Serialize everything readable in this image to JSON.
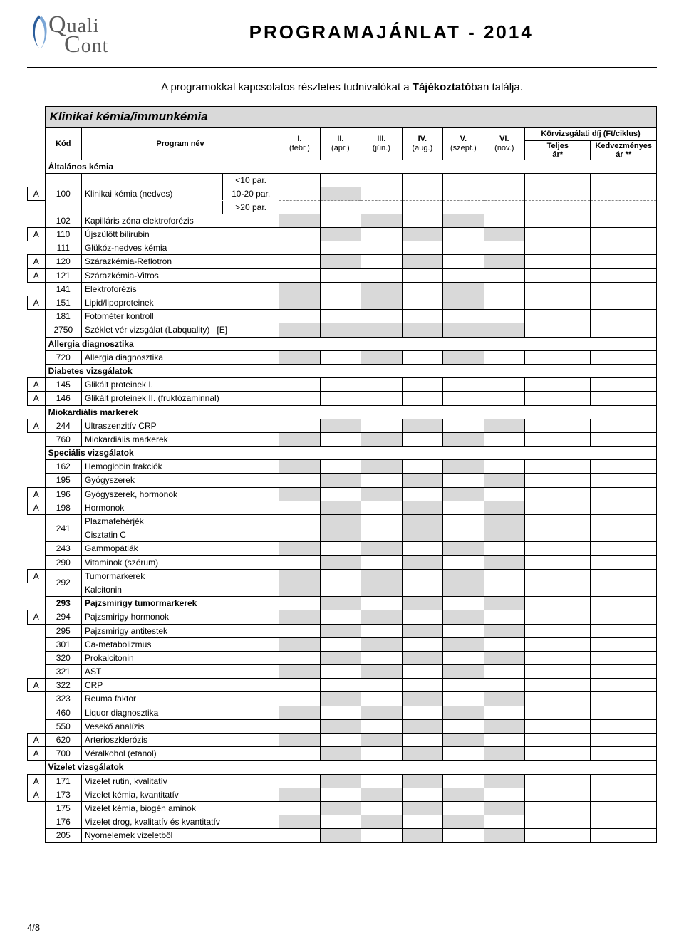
{
  "header": {
    "logo_line1_cap": "Q",
    "logo_line1_rest": "uali",
    "logo_line2_cap": "C",
    "logo_line2_rest": "ont",
    "title": "PROGRAMAJÁNLAT - 2014"
  },
  "intro_prefix": "A programokkal kapcsolatos részletes tudnivalókat a ",
  "intro_bold": "Tájékoztató",
  "intro_suffix": "ban találja.",
  "section_title": "Klinikai kémia/immunkémia",
  "columns": {
    "kod": "Kód",
    "program_nev": "Program név",
    "c1_top": "I.",
    "c1_bot": "(febr.)",
    "c2_top": "II.",
    "c2_bot": "(ápr.)",
    "c3_top": "III.",
    "c3_bot": "(jún.)",
    "c4_top": "IV.",
    "c4_bot": "(aug.)",
    "c5_top": "V.",
    "c5_bot": "(szept.)",
    "c6_top": "VI.",
    "c6_bot": "(nov.)",
    "price_header": "Körvizsgálati díj (Ft/ciklus)",
    "price_full": "Teljes ár*",
    "price_disc": "Kedvezményes ár **"
  },
  "groups": [
    {
      "title": "Általános kémia",
      "rows": [
        {
          "a": "A",
          "code": "100",
          "name": "Klinikai kémia (nedves)",
          "variants": [
            "<10 par.",
            "10-20 par.",
            ">20 par."
          ],
          "grey_cycles": [
            2
          ]
        },
        {
          "a": "",
          "code": "102",
          "name": "Kapilláris zóna elektroforézis",
          "grey_cycles": [
            1,
            3,
            5
          ]
        },
        {
          "a": "A",
          "code": "110",
          "name": "Újszülött bilirubin",
          "grey_cycles": [
            2,
            4,
            6
          ]
        },
        {
          "a": "",
          "code": "111",
          "name": "Glükóz-nedves kémia",
          "grey_cycles": []
        },
        {
          "a": "A",
          "code": "120",
          "name": "Szárazkémia-Reflotron",
          "grey_cycles": [
            2,
            4,
            6
          ]
        },
        {
          "a": "A",
          "code": "121",
          "name": "Szárazkémia-Vitros",
          "grey_cycles": []
        },
        {
          "a": "",
          "code": "141",
          "name": "Elektroforézis",
          "grey_cycles": [
            1,
            3,
            5
          ]
        },
        {
          "a": "A",
          "code": "151",
          "name": "Lipid/lipoproteinek",
          "grey_cycles": [
            1,
            3,
            5
          ]
        },
        {
          "a": "",
          "code": "181",
          "name": "Fotométer kontroll",
          "grey_cycles": []
        },
        {
          "a": "",
          "code": "2750",
          "name": "Széklet vér vizsgálat (Labquality)",
          "extra": "[E]",
          "grey_cycles": [
            1,
            2,
            3,
            4,
            5,
            6
          ]
        }
      ]
    },
    {
      "title": "Allergia diagnosztika",
      "rows": [
        {
          "a": "",
          "code": "720",
          "name": "Allergia diagnosztika",
          "grey_cycles": [
            1,
            3,
            5
          ]
        }
      ]
    },
    {
      "title": "Diabetes vizsgálatok",
      "rows": [
        {
          "a": "A",
          "code": "145",
          "name": "Glikált proteinek I.",
          "grey_cycles": []
        },
        {
          "a": "A",
          "code": "146",
          "name": "Glikált proteinek II. (fruktózaminnal)",
          "grey_cycles": []
        }
      ]
    },
    {
      "title": "Miokardiális markerek",
      "rows": [
        {
          "a": "A",
          "code": "244",
          "name": "Ultraszenzitív CRP",
          "grey_cycles": [
            2,
            4,
            6
          ]
        },
        {
          "a": "",
          "code": "760",
          "name": "Miokardiális markerek",
          "grey_cycles": [
            1,
            3,
            5
          ]
        }
      ]
    },
    {
      "title": "Speciális vizsgálatok",
      "rows": [
        {
          "a": "",
          "code": "162",
          "name": "Hemoglobin frakciók",
          "grey_cycles": [
            1,
            3,
            5
          ]
        },
        {
          "a": "",
          "code": "195",
          "name": "Gyógyszerek",
          "grey_cycles": [
            2,
            4,
            6
          ]
        },
        {
          "a": "A",
          "code": "196",
          "name": "Gyógyszerek, hormonok",
          "grey_cycles": [
            1,
            3,
            5
          ]
        },
        {
          "a": "A",
          "code": "198",
          "name": "Hormonok",
          "grey_cycles": [
            2,
            4,
            6
          ]
        },
        {
          "a": "",
          "code": "241",
          "name": "",
          "sub": [
            "Plazmafehérjék",
            "Cisztatin C"
          ],
          "grey_cycles": [
            2,
            4,
            6
          ]
        },
        {
          "a": "",
          "code": "243",
          "name": "Gammopátiák",
          "grey_cycles": [
            1,
            3,
            5
          ]
        },
        {
          "a": "",
          "code": "290",
          "name": "Vitaminok (szérum)",
          "grey_cycles": [
            2,
            4,
            6
          ]
        },
        {
          "a": "A",
          "code": "292",
          "name": "",
          "sub": [
            "Tumormarkerek",
            "Kalcitonin"
          ],
          "grey_cycles": [
            1,
            3,
            5
          ]
        },
        {
          "a": "",
          "code": "293",
          "name": "Pajzsmirigy tumormarkerek",
          "bold": true,
          "grey_cycles": [
            2,
            4,
            6
          ]
        },
        {
          "a": "A",
          "code": "294",
          "name": "Pajzsmirigy hormonok",
          "grey_cycles": [
            1,
            3,
            5
          ]
        },
        {
          "a": "",
          "code": "295",
          "name": "Pajzsmirigy antitestek",
          "grey_cycles": [
            2,
            4,
            6
          ]
        },
        {
          "a": "",
          "code": "301",
          "name": "Ca-metabolizmus",
          "grey_cycles": [
            1,
            3,
            5
          ]
        },
        {
          "a": "",
          "code": "320",
          "name": "Prokalcitonin",
          "grey_cycles": [
            2,
            4,
            6
          ]
        },
        {
          "a": "",
          "code": "321",
          "name": "AST",
          "grey_cycles": [
            1,
            3,
            5
          ]
        },
        {
          "a": "A",
          "code": "322",
          "name": "CRP",
          "grey_cycles": []
        },
        {
          "a": "",
          "code": "323",
          "name": "Reuma faktor",
          "grey_cycles": [
            2,
            4,
            6
          ]
        },
        {
          "a": "",
          "code": "460",
          "name": "Liquor diagnosztika",
          "grey_cycles": [
            1,
            3,
            5
          ]
        },
        {
          "a": "",
          "code": "550",
          "name": "Vesekő analízis",
          "grey_cycles": [
            2,
            4,
            6
          ]
        },
        {
          "a": "A",
          "code": "620",
          "name": "Arterioszklerózis",
          "grey_cycles": [
            1,
            3,
            5
          ]
        },
        {
          "a": "A",
          "code": "700",
          "name": "Véralkohol (etanol)",
          "grey_cycles": [
            2,
            4,
            6
          ]
        }
      ]
    },
    {
      "title": "Vizelet vizsgálatok",
      "rows": [
        {
          "a": "A",
          "code": "171",
          "name": "Vizelet rutin, kvalitatív",
          "grey_cycles": [
            2,
            4,
            6
          ]
        },
        {
          "a": "A",
          "code": "173",
          "name": "Vizelet kémia, kvantitatív",
          "grey_cycles": [
            1,
            3,
            5
          ]
        },
        {
          "a": "",
          "code": "175",
          "name": "Vizelet kémia, biogén aminok",
          "grey_cycles": [
            2,
            4,
            6
          ]
        },
        {
          "a": "",
          "code": "176",
          "name": "Vizelet drog, kvalitatív és kvantitatív",
          "grey_cycles": [
            1,
            3,
            5
          ]
        },
        {
          "a": "",
          "code": "205",
          "name": "Nyomelemek vizeletből",
          "grey_cycles": [
            2,
            4,
            6
          ]
        }
      ]
    }
  ],
  "page_number": "4/8",
  "colors": {
    "grey": "#d9d9d9",
    "logo_stroke": "#2b5d9b"
  }
}
